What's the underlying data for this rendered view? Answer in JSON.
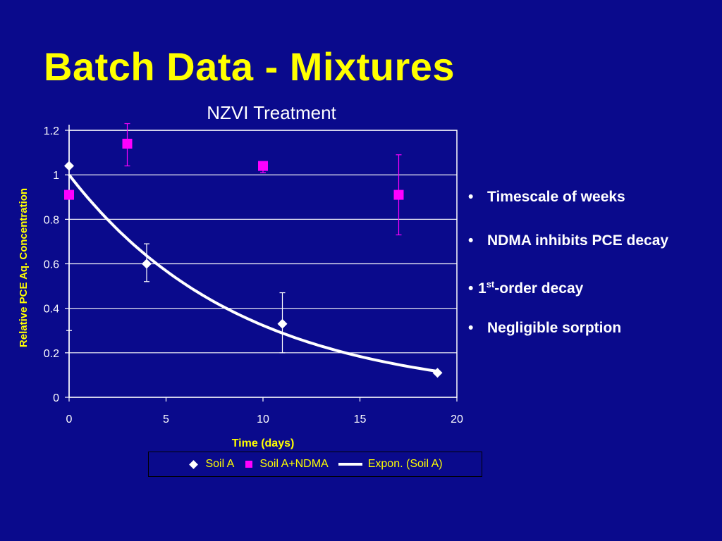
{
  "slide": {
    "title": "Batch Data - Mixtures",
    "bullets": [
      {
        "text": "Timescale of weeks"
      },
      {
        "text": "NDMA inhibits PCE decay"
      },
      {
        "prefix": "1",
        "sup": "st",
        "suffix": "-order decay"
      },
      {
        "text": "Negligible sorption"
      }
    ]
  },
  "chart_data": {
    "type": "scatter",
    "title": "NZVI Treatment",
    "xlabel": "Time (days)",
    "ylabel": "Relative PCE Aq. Concentration",
    "xlim": [
      0,
      20
    ],
    "ylim": [
      0,
      1.2
    ],
    "x_ticks": [
      "0",
      "5",
      "10",
      "15",
      "20"
    ],
    "y_ticks": [
      "0",
      "0.2",
      "0.4",
      "0.6",
      "0.8",
      "1",
      "1.2"
    ],
    "grid": "horizontal",
    "legend_position": "bottom",
    "series": [
      {
        "name": "Soil A",
        "marker": "diamond",
        "color": "#ffffff",
        "x": [
          0,
          4,
          11,
          19
        ],
        "y": [
          1.04,
          0.6,
          0.33,
          0.11
        ],
        "err_low": [
          0.3,
          0.52,
          0.2,
          0.11
        ],
        "err_high": [
          1.04,
          0.69,
          0.47,
          0.11
        ]
      },
      {
        "name": "Soil A+NDMA",
        "marker": "square",
        "color": "#ff00ff",
        "x": [
          0,
          3,
          10,
          17
        ],
        "y": [
          0.91,
          1.14,
          1.04,
          0.91
        ],
        "err_low": [
          0.91,
          1.04,
          1.01,
          0.73
        ],
        "err_high": [
          0.91,
          1.23,
          1.06,
          1.09
        ]
      }
    ],
    "trendline": {
      "name": "Expon. (Soil A)",
      "type": "exponential",
      "color": "#ffffff",
      "a": 1.0,
      "k": 0.113,
      "x_range": [
        0,
        19
      ]
    }
  }
}
